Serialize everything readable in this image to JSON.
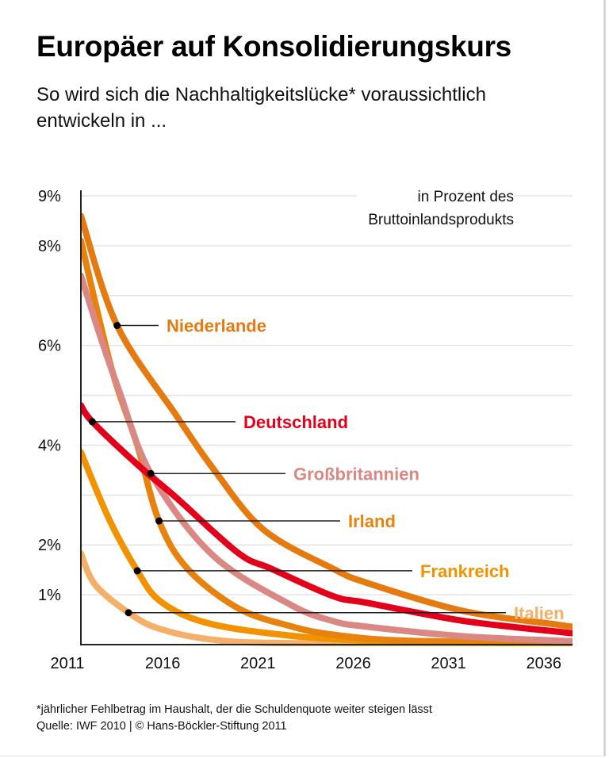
{
  "title": "Europäer auf Konsolidierungskurs",
  "subtitle": "So wird sich die Nachhaltigkeitslücke* voraussichtlich entwickeln in ...",
  "footnote": "*jährlicher Fehlbetrag im Haushalt, der die Schuldenquote weiter steigen lässt",
  "source": "Quelle: IWF 2010 | © Hans-Böckler-Stiftung 2011",
  "chart_data": {
    "type": "line",
    "title": "Europäer auf Konsolidierungskurs",
    "unit_note_line1": "in Prozent des",
    "unit_note_line2": "Bruttoinlandsprodukts",
    "xlim": [
      2011,
      2036.8
    ],
    "ylim": [
      0,
      9
    ],
    "grid": true,
    "x_ticks": [
      2011,
      2016,
      2021,
      2026,
      2031,
      2036
    ],
    "x_tick_labels": [
      "2011",
      "2016",
      "2021",
      "2026",
      "2031",
      "2036"
    ],
    "y_ticks": [
      9,
      8,
      6,
      4,
      2,
      1
    ],
    "y_tick_labels": [
      "9%",
      "8%",
      "6%",
      "4%",
      "2%",
      "1%"
    ],
    "gridlines_at": [
      1,
      2,
      3,
      4,
      5,
      6,
      7,
      8,
      9
    ],
    "series": [
      {
        "name": "Niederlande",
        "color": "#e57a10",
        "x": [
          2011,
          2012.9,
          2016,
          2018,
          2020.6,
          2024.25,
          2026,
          2031,
          2036,
          2036.8
        ],
        "y": [
          8.6,
          6.4,
          4.6,
          3.5,
          2.3,
          1.52,
          1.24,
          0.68,
          0.4,
          0.36
        ],
        "marker": [
          2012.9,
          6.4
        ]
      },
      {
        "name": "Deutschland",
        "color": "#e2001a",
        "x": [
          2011,
          2011.6,
          2014,
          2016,
          2019.25,
          2021,
          2024.25,
          2026,
          2031,
          2036,
          2036.8
        ],
        "y": [
          4.8,
          4.47,
          3.6,
          2.95,
          1.84,
          1.52,
          0.97,
          0.84,
          0.48,
          0.26,
          0.23
        ],
        "marker": [
          2011.6,
          4.47
        ]
      },
      {
        "name": "Großbritannien",
        "color": "#d98883",
        "x": [
          2011,
          2012,
          2013,
          2014.67,
          2017.9,
          2022,
          2024.25,
          2026,
          2031,
          2036,
          2036.8
        ],
        "y": [
          7.4,
          6.2,
          5.1,
          3.43,
          1.8,
          0.8,
          0.47,
          0.36,
          0.17,
          0.08,
          0.07
        ],
        "marker": [
          2014.67,
          3.43
        ]
      },
      {
        "name": "Irland",
        "color": "#e8820e",
        "x": [
          2011,
          2012.6,
          2013.96,
          2015.1,
          2016.6,
          2019.25,
          2022,
          2024.25,
          2028,
          2036.8
        ],
        "y": [
          8.1,
          5.55,
          4.0,
          2.48,
          1.52,
          0.73,
          0.37,
          0.2,
          0.08,
          0.04
        ],
        "marker": [
          2015.1,
          2.48
        ]
      },
      {
        "name": "Frankreich",
        "color": "#f39200",
        "x": [
          2011,
          2012.5,
          2013.96,
          2015.1,
          2017.2,
          2020.6,
          2026,
          2036.8
        ],
        "y": [
          3.86,
          2.5,
          1.48,
          0.89,
          0.48,
          0.24,
          0.08,
          0.02
        ],
        "marker": [
          2013.96,
          1.48
        ]
      },
      {
        "name": "Italien",
        "color": "#f4b068",
        "x": [
          2011,
          2011.75,
          2013.5,
          2015.1,
          2017.9,
          2022,
          2036.8
        ],
        "y": [
          1.83,
          1.2,
          0.64,
          0.32,
          0.1,
          0.03,
          0.01
        ],
        "marker": [
          2013.5,
          0.64
        ]
      }
    ]
  }
}
